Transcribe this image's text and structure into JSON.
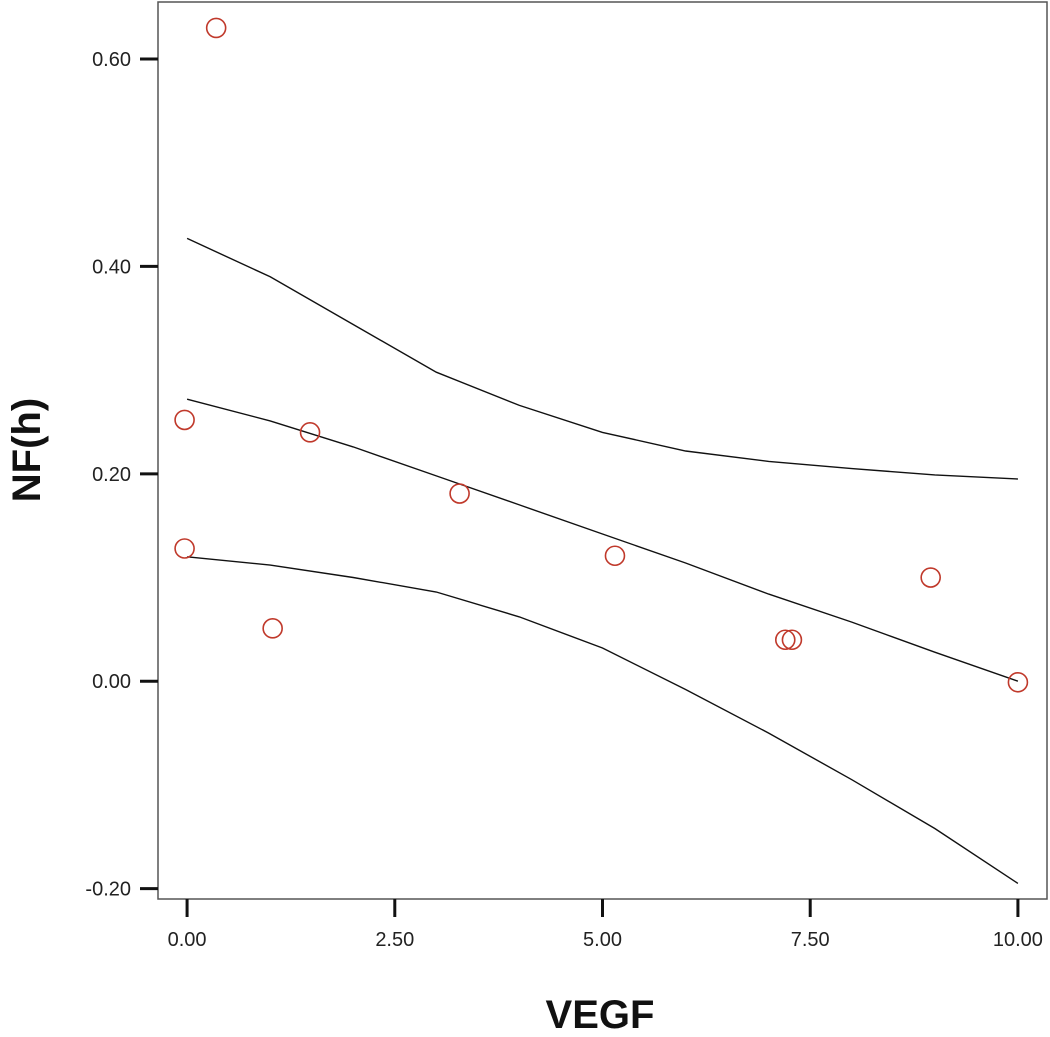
{
  "chart_data": {
    "type": "scatter",
    "title": "",
    "xlabel": "VEGF",
    "ylabel": "NF(h)",
    "xlim": [
      -0.35,
      10.35
    ],
    "ylim": [
      -0.21,
      0.655
    ],
    "x_ticks": [
      0.0,
      2.5,
      5.0,
      7.5,
      10.0
    ],
    "x_tick_labels": [
      "0.00",
      "2.50",
      "5.00",
      "7.50",
      "10.00"
    ],
    "y_ticks": [
      -0.2,
      0.0,
      0.2,
      0.4,
      0.6
    ],
    "y_tick_labels": [
      "-0.20",
      "0.00",
      "0.20",
      "0.40",
      "0.60"
    ],
    "grid": false,
    "legend": "none",
    "point_color": "#c0392b",
    "line_color": "#111111",
    "points": [
      {
        "x": 0.35,
        "y": 0.63
      },
      {
        "x": -0.03,
        "y": 0.252
      },
      {
        "x": -0.03,
        "y": 0.128
      },
      {
        "x": 1.03,
        "y": 0.051
      },
      {
        "x": 1.48,
        "y": 0.24
      },
      {
        "x": 3.28,
        "y": 0.181
      },
      {
        "x": 5.15,
        "y": 0.121
      },
      {
        "x": 7.2,
        "y": 0.04
      },
      {
        "x": 7.28,
        "y": 0.04
      },
      {
        "x": 8.95,
        "y": 0.1
      },
      {
        "x": 10.0,
        "y": -0.001
      }
    ],
    "lines": [
      {
        "role": "fit",
        "x": [
          0.0,
          1.0,
          2.0,
          3.0,
          4.0,
          5.0,
          6.0,
          7.0,
          8.0,
          9.0,
          10.0
        ],
        "y": [
          0.272,
          0.251,
          0.226,
          0.198,
          0.17,
          0.142,
          0.114,
          0.084,
          0.057,
          0.028,
          0.0
        ]
      },
      {
        "role": "upper-ci",
        "x": [
          0.0,
          1.0,
          2.0,
          3.0,
          4.0,
          5.0,
          6.0,
          7.0,
          8.0,
          9.0,
          10.0
        ],
        "y": [
          0.427,
          0.39,
          0.344,
          0.298,
          0.266,
          0.24,
          0.222,
          0.212,
          0.205,
          0.199,
          0.195
        ]
      },
      {
        "role": "lower-ci",
        "x": [
          0.0,
          1.0,
          2.0,
          3.0,
          4.0,
          5.0,
          6.0,
          7.0,
          8.0,
          9.0,
          10.0
        ],
        "y": [
          0.12,
          0.112,
          0.1,
          0.086,
          0.062,
          0.032,
          -0.008,
          -0.05,
          -0.095,
          -0.142,
          -0.195
        ]
      }
    ]
  }
}
